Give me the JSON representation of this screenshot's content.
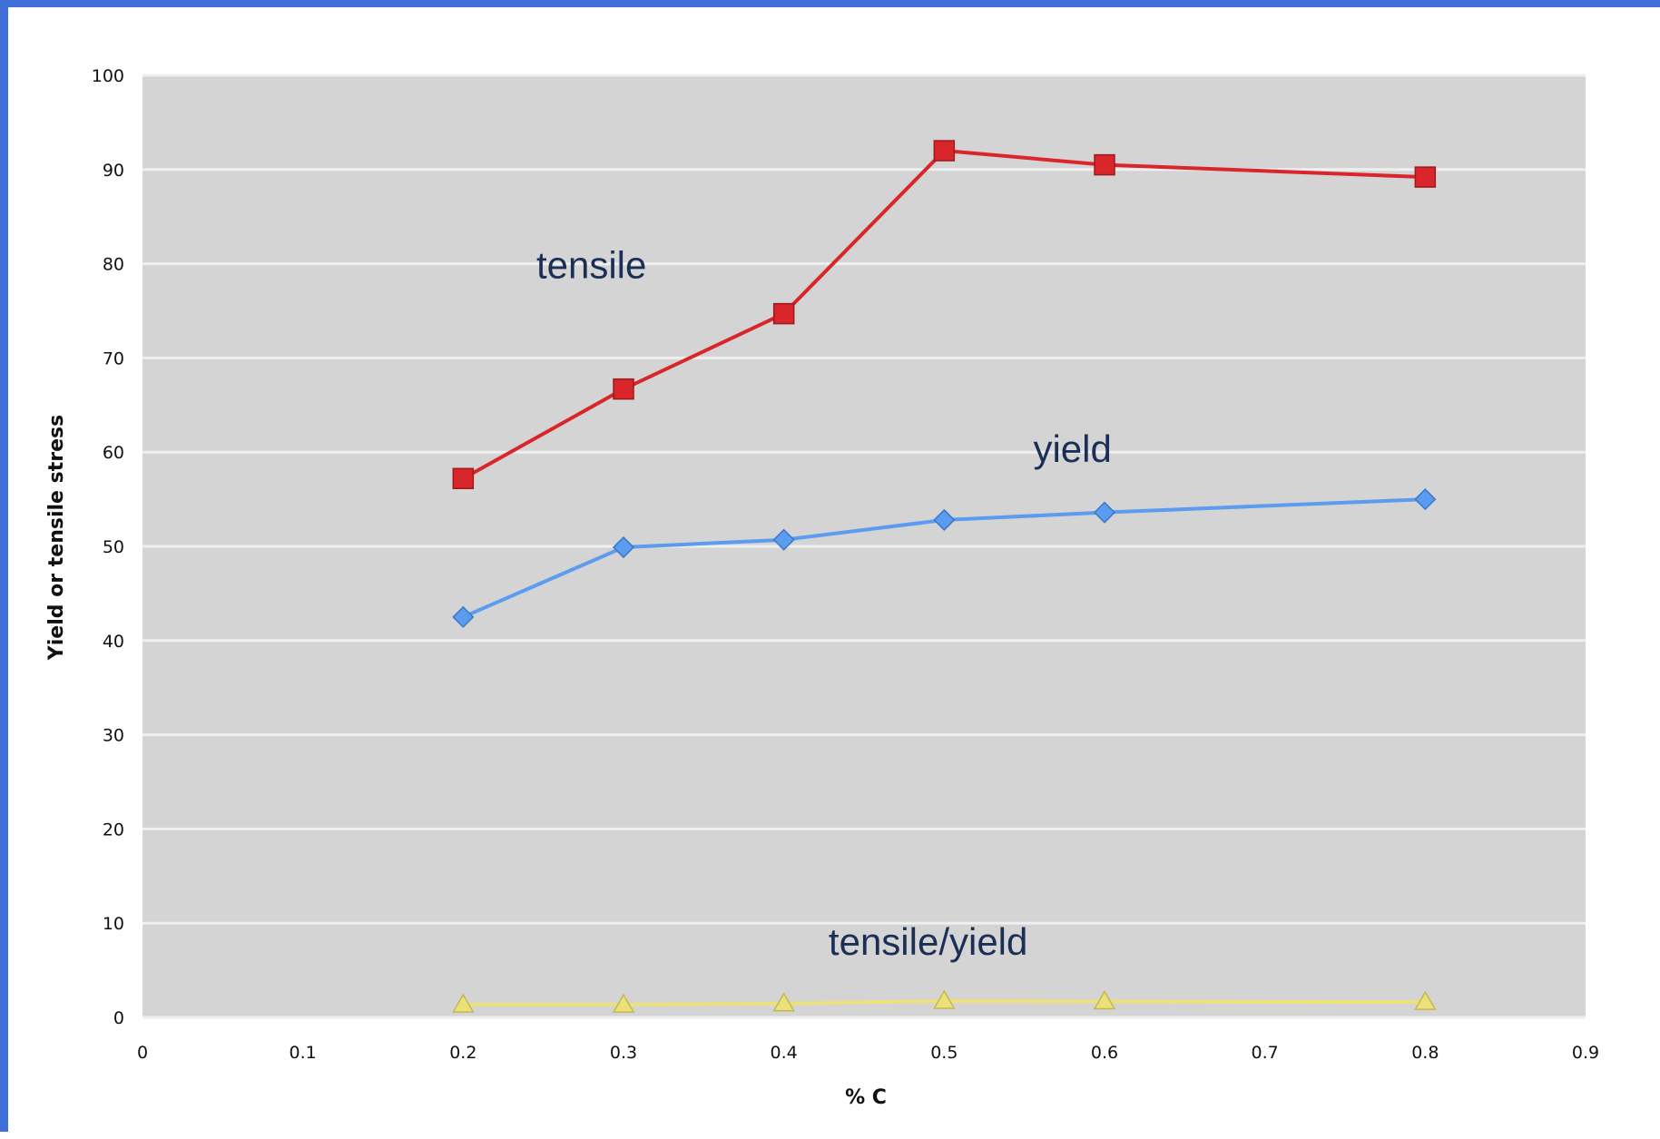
{
  "chart_data": {
    "type": "line",
    "title": "",
    "xlabel": "% C",
    "ylabel": "Yield or tensile stress",
    "xlim": [
      0,
      0.9
    ],
    "ylim": [
      0,
      100
    ],
    "x_ticks": [
      "0",
      "0.1",
      "0.2",
      "0.3",
      "0.4",
      "0.5",
      "0.6",
      "0.7",
      "0.8",
      "0.9"
    ],
    "y_ticks": [
      "0",
      "10",
      "20",
      "30",
      "40",
      "50",
      "60",
      "70",
      "80",
      "90",
      "100"
    ],
    "grid": true,
    "legend": "none",
    "x": [
      0.2,
      0.3,
      0.4,
      0.5,
      0.6,
      0.8
    ],
    "series": [
      {
        "name": "tensile",
        "color": "#d9262b",
        "marker": "square",
        "values": [
          57.2,
          66.7,
          74.7,
          92.0,
          90.5,
          89.2
        ]
      },
      {
        "name": "yield",
        "color": "#5b9bf0",
        "marker": "diamond",
        "values": [
          42.5,
          49.9,
          50.7,
          52.8,
          53.6,
          55.0
        ]
      },
      {
        "name": "tensile/yield",
        "color": "#ebe07a",
        "marker": "triangle",
        "values": [
          1.35,
          1.34,
          1.47,
          1.74,
          1.69,
          1.62
        ]
      }
    ],
    "annotations": [
      {
        "text": "tensile",
        "x": 0.28,
        "y": 80
      },
      {
        "text": "yield",
        "x": 0.58,
        "y": 60.5
      },
      {
        "text": "tensile/yield",
        "x": 0.49,
        "y": 8.2
      }
    ],
    "colors": {
      "plot_background": "#d4d4d4",
      "gridline": "#efefef",
      "frame": "#3f6fd8"
    }
  }
}
